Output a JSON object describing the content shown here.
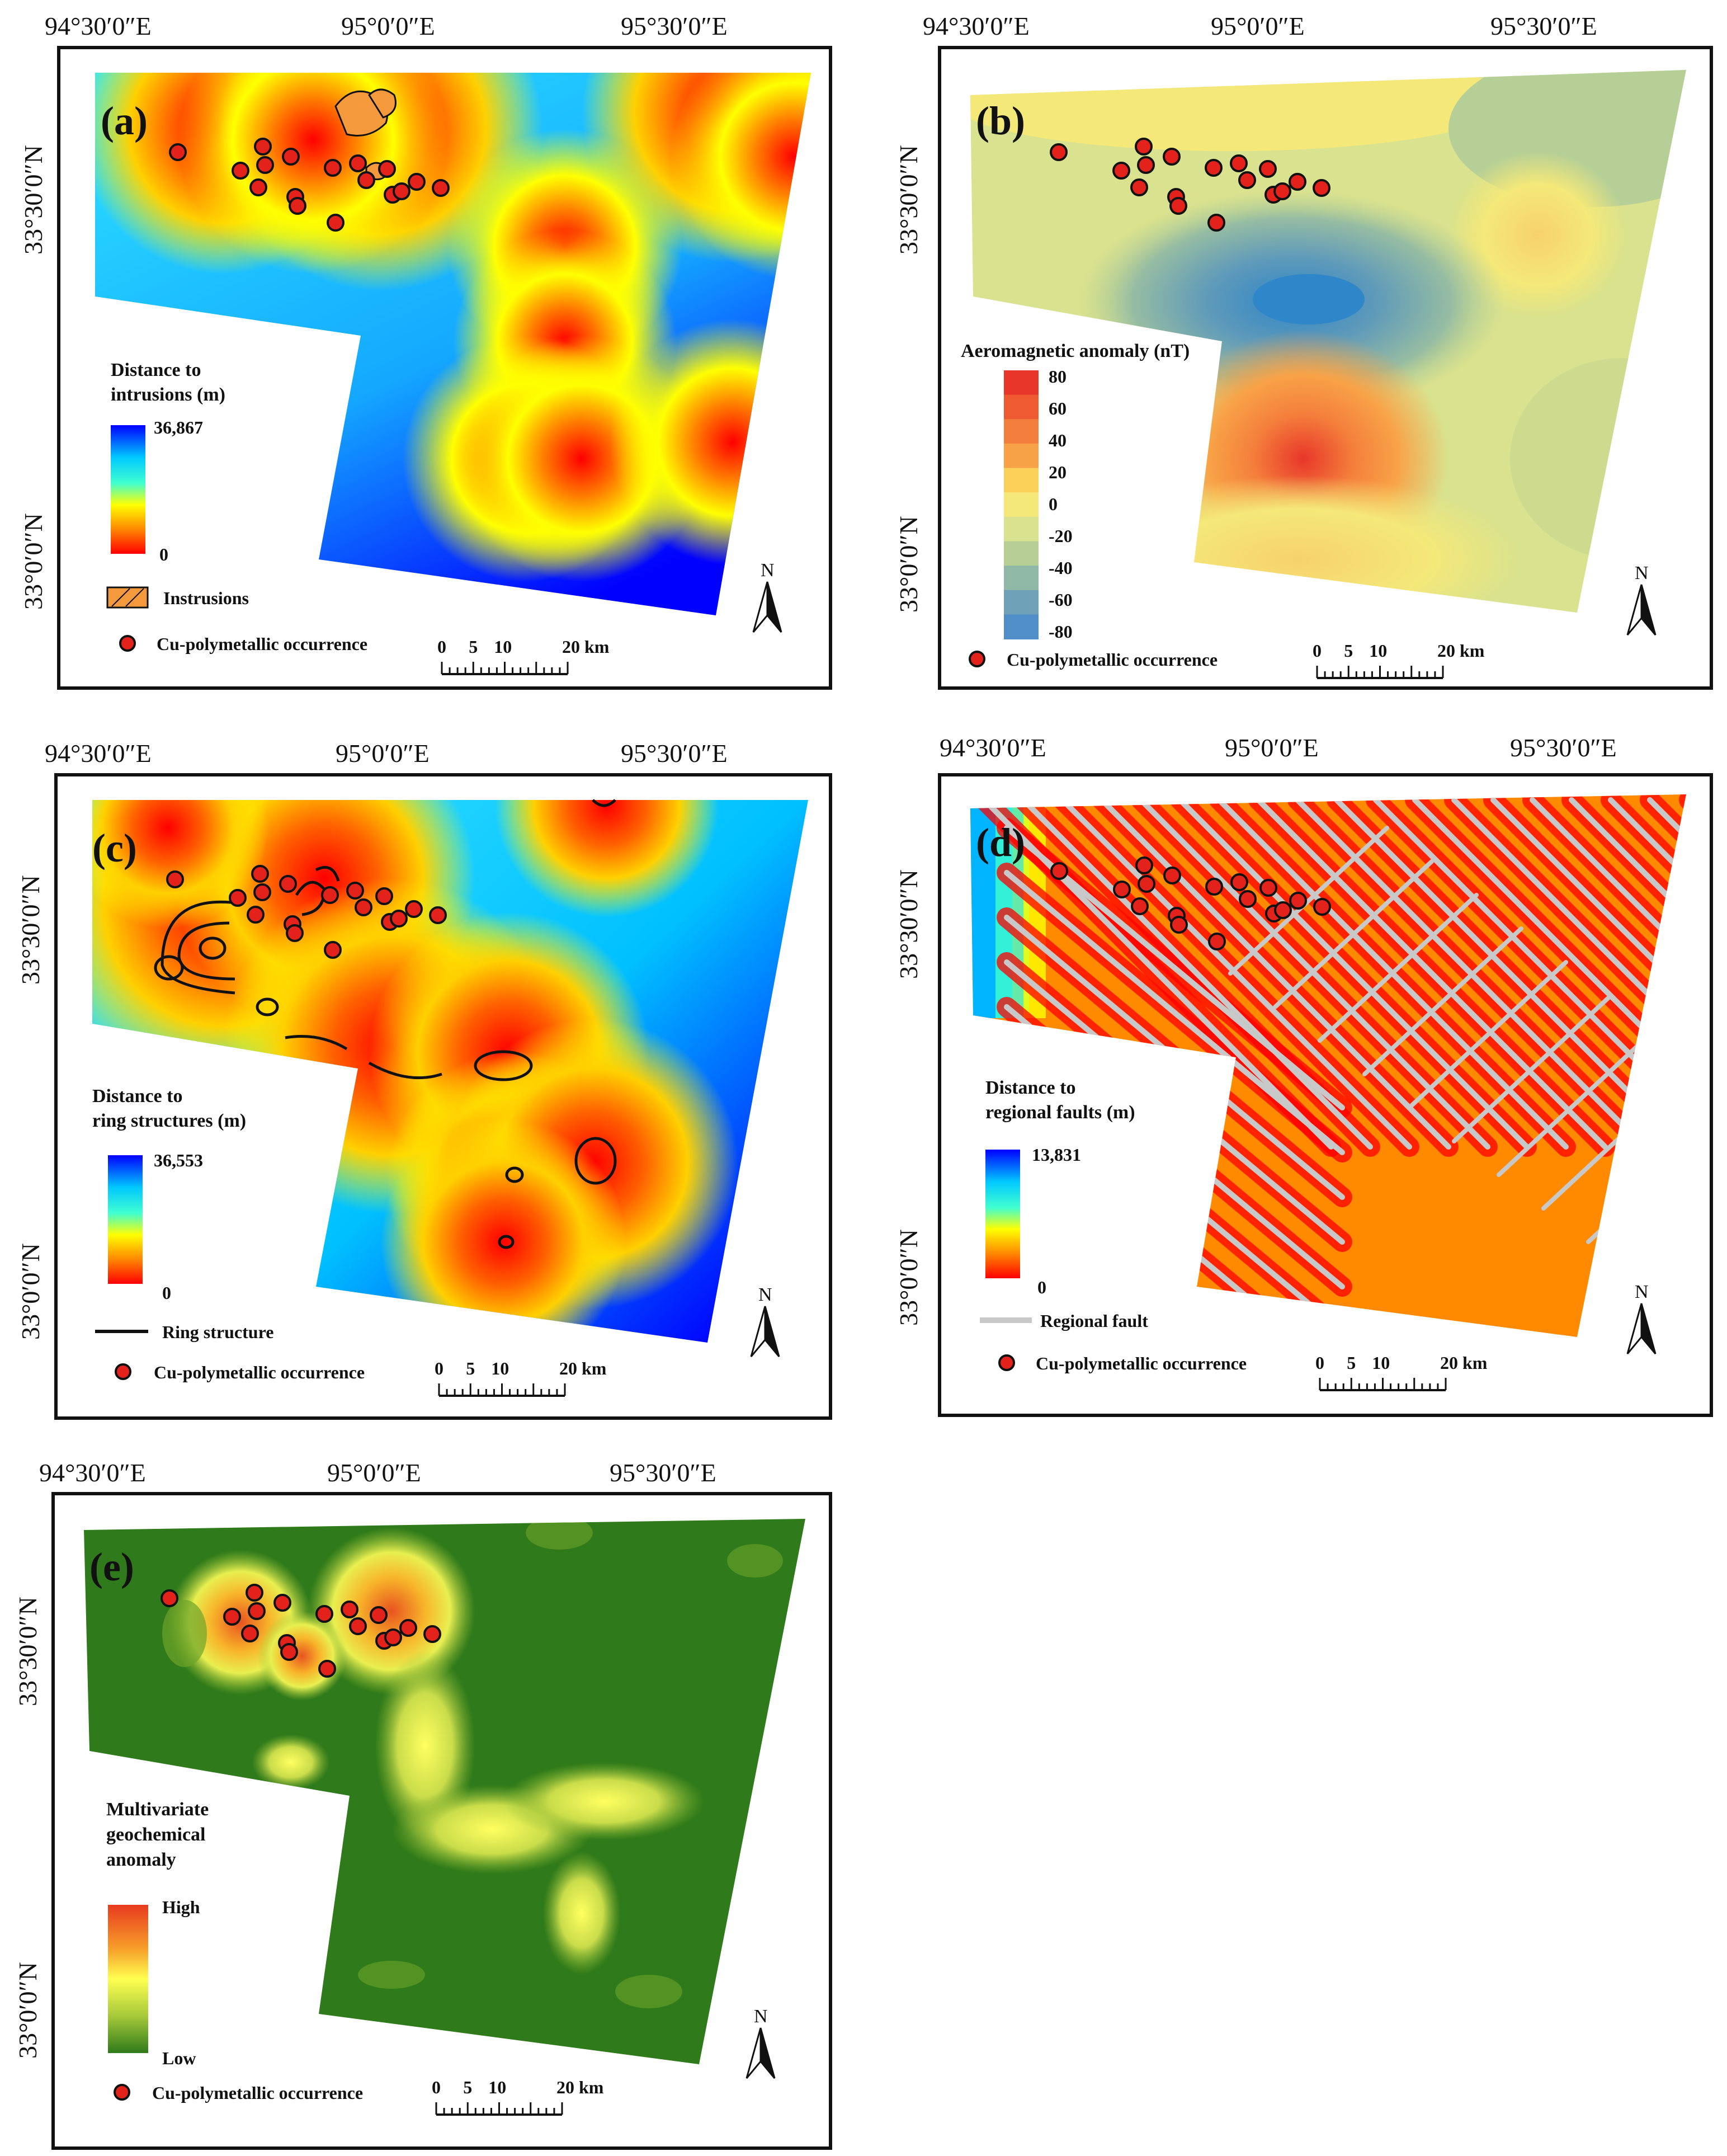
{
  "panels": [
    {
      "id": "a",
      "letter": "(a)",
      "lon_labels": [
        "94°30′0″E",
        "95°0′0″E",
        "95°30′0″E"
      ],
      "lat_labels": [
        "33°30′0″N",
        "33°0′0″N"
      ],
      "legend": {
        "title_lines": [
          "Distance to",
          "intrusions (m)"
        ],
        "max": "36,867",
        "min": "0",
        "ramp": [
          "#0000ff",
          "#00c8ff",
          "#40ffd0",
          "#ffff00",
          "#ff8000",
          "#ff0000"
        ]
      },
      "extra_legend": "Instrusions",
      "occurrence_label": "Cu-polymetallic occurrence",
      "scale": [
        "0",
        "5",
        "10",
        "20 km"
      ],
      "north": "N"
    },
    {
      "id": "b",
      "letter": "(b)",
      "lon_labels": [
        "94°30′0″E",
        "95°0′0″E",
        "95°30′0″E"
      ],
      "lat_labels": [
        "33°30′0″N",
        "33°0′0″N"
      ],
      "legend": {
        "title": "Aeromagnetic anomaly (nT)",
        "classes": [
          "80",
          "60",
          "40",
          "20",
          "0",
          "-20",
          "-40",
          "-60",
          "-80"
        ],
        "ramp": [
          "#e8372a",
          "#ef5a33",
          "#f47f3c",
          "#f8a247",
          "#fbd15a",
          "#f4e879",
          "#d9e28e",
          "#b6cf96",
          "#8fb8a6",
          "#6fa2b8",
          "#4f8ec9"
        ]
      },
      "occurrence_label": "Cu-polymetallic occurrence",
      "scale": [
        "0",
        "5",
        "10",
        "20 km"
      ],
      "north": "N"
    },
    {
      "id": "c",
      "letter": "(c)",
      "lon_labels": [
        "94°30′0″E",
        "95°0′0″E",
        "95°30′0″E"
      ],
      "lat_labels": [
        "33°30′0″N",
        "33°0′0″N"
      ],
      "legend": {
        "title_lines": [
          "Distance to",
          "ring structures (m)"
        ],
        "max": "36,553",
        "min": "0",
        "ramp": [
          "#0000ff",
          "#00c8ff",
          "#40ffd0",
          "#ffff00",
          "#ff8000",
          "#ff0000"
        ]
      },
      "extra_legend": "Ring structure",
      "occurrence_label": "Cu-polymetallic occurrence",
      "scale": [
        "0",
        "5",
        "10",
        "20 km"
      ],
      "north": "N"
    },
    {
      "id": "d",
      "letter": "(d)",
      "lon_labels": [
        "94°30′0″E",
        "95°0′0″E",
        "95°30′0″E"
      ],
      "lat_labels": [
        "33°30′0″N",
        "33°0′0″N"
      ],
      "legend": {
        "title_lines": [
          "Distance to",
          "regional faults (m)"
        ],
        "max": "13,831",
        "min": "0",
        "ramp": [
          "#0000ff",
          "#00c8ff",
          "#40ffd0",
          "#ffff00",
          "#ff8000",
          "#ff0000"
        ]
      },
      "extra_legend": "Regional fault",
      "occurrence_label": "Cu-polymetallic occurrence",
      "scale": [
        "0",
        "5",
        "10",
        "20 km"
      ],
      "north": "N"
    },
    {
      "id": "e",
      "letter": "(e)",
      "lon_labels": [
        "94°30′0″E",
        "95°0′0″E",
        "95°30′0″E"
      ],
      "lat_labels": [
        "33°30′0″N",
        "33°0′0″N"
      ],
      "legend": {
        "title_lines": [
          "Multivariate",
          "geochemical",
          "anomaly"
        ],
        "max": "High",
        "min": "Low",
        "ramp": [
          "#e83a1f",
          "#f7a02a",
          "#ffff50",
          "#a6c93a",
          "#2f7a1a"
        ]
      },
      "occurrence_label": "Cu-polymetallic occurrence",
      "scale": [
        "0",
        "5",
        "10",
        "20 km"
      ],
      "north": "N"
    }
  ],
  "colors": {
    "occurrence_fill": "#e3231b",
    "frame": "#111111",
    "fault": "#c8c8c8"
  }
}
